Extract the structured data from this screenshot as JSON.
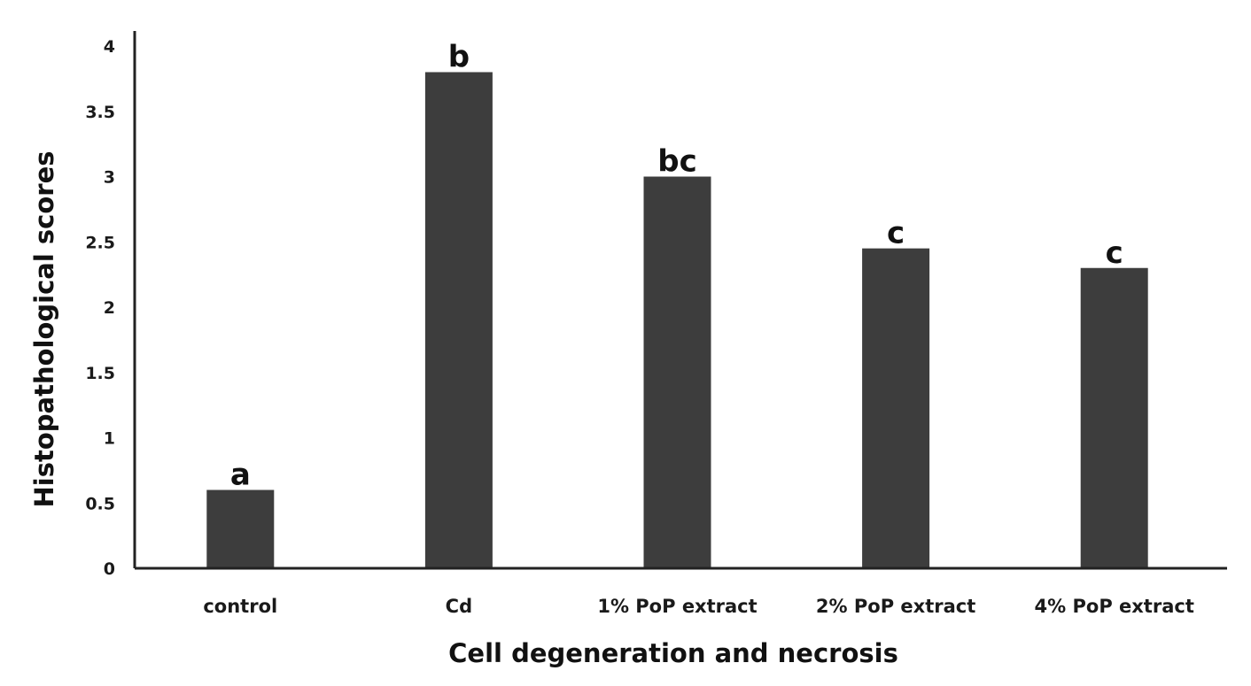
{
  "chart_data": {
    "type": "bar",
    "categories": [
      "control",
      "Cd",
      "1% PoP extract",
      "2% PoP extract",
      "4% PoP extract"
    ],
    "values": [
      0.6,
      3.8,
      3.0,
      2.45,
      2.3
    ],
    "significance_letters": [
      "a",
      "b",
      "bc",
      "c",
      "c"
    ],
    "title": "",
    "xlabel": "Cell degeneration and necrosis",
    "ylabel": "Histopathological scores",
    "ylim": [
      0,
      4
    ],
    "yticks": [
      "0",
      "0.5",
      "1",
      "1.5",
      "2",
      "2.5",
      "3",
      "3.5",
      "4"
    ],
    "grid": false,
    "legend": "none",
    "bar_color": "#3d3d3d"
  }
}
